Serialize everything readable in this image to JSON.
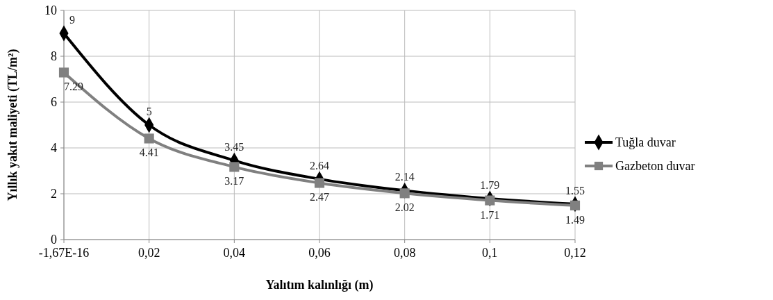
{
  "chart_data": {
    "type": "line",
    "xlabel": "Yalıtım kalınlığı (m)",
    "ylabel": "Yıllık yakıt maliyeti (TL/m²)",
    "x": [
      0,
      0.02,
      0.04,
      0.06,
      0.08,
      0.1,
      0.12
    ],
    "series": [
      {
        "name": "Tuğla duvar",
        "color": "#000000",
        "marker": "diamond",
        "values": [
          9,
          5,
          3.45,
          2.64,
          2.14,
          1.79,
          1.55
        ]
      },
      {
        "name": "Gazbeton duvar",
        "color": "#808080",
        "marker": "square",
        "values": [
          7.29,
          4.41,
          3.17,
          2.47,
          2.02,
          1.71,
          1.49
        ]
      }
    ],
    "xlim": [
      0,
      0.12
    ],
    "xticks": [
      {
        "value": 0,
        "label": "-1,67E-16"
      },
      {
        "value": 0.02,
        "label": "0,02"
      },
      {
        "value": 0.04,
        "label": "0,04"
      },
      {
        "value": 0.06,
        "label": "0,06"
      },
      {
        "value": 0.08,
        "label": "0,08"
      },
      {
        "value": 0.1,
        "label": "0,1"
      },
      {
        "value": 0.12,
        "label": "0,12"
      }
    ],
    "ylim": [
      0,
      10
    ],
    "yticks": [
      0,
      2,
      4,
      6,
      8,
      10
    ],
    "grid": true,
    "legend": "right",
    "data_labels": true,
    "line_style": "solid"
  }
}
